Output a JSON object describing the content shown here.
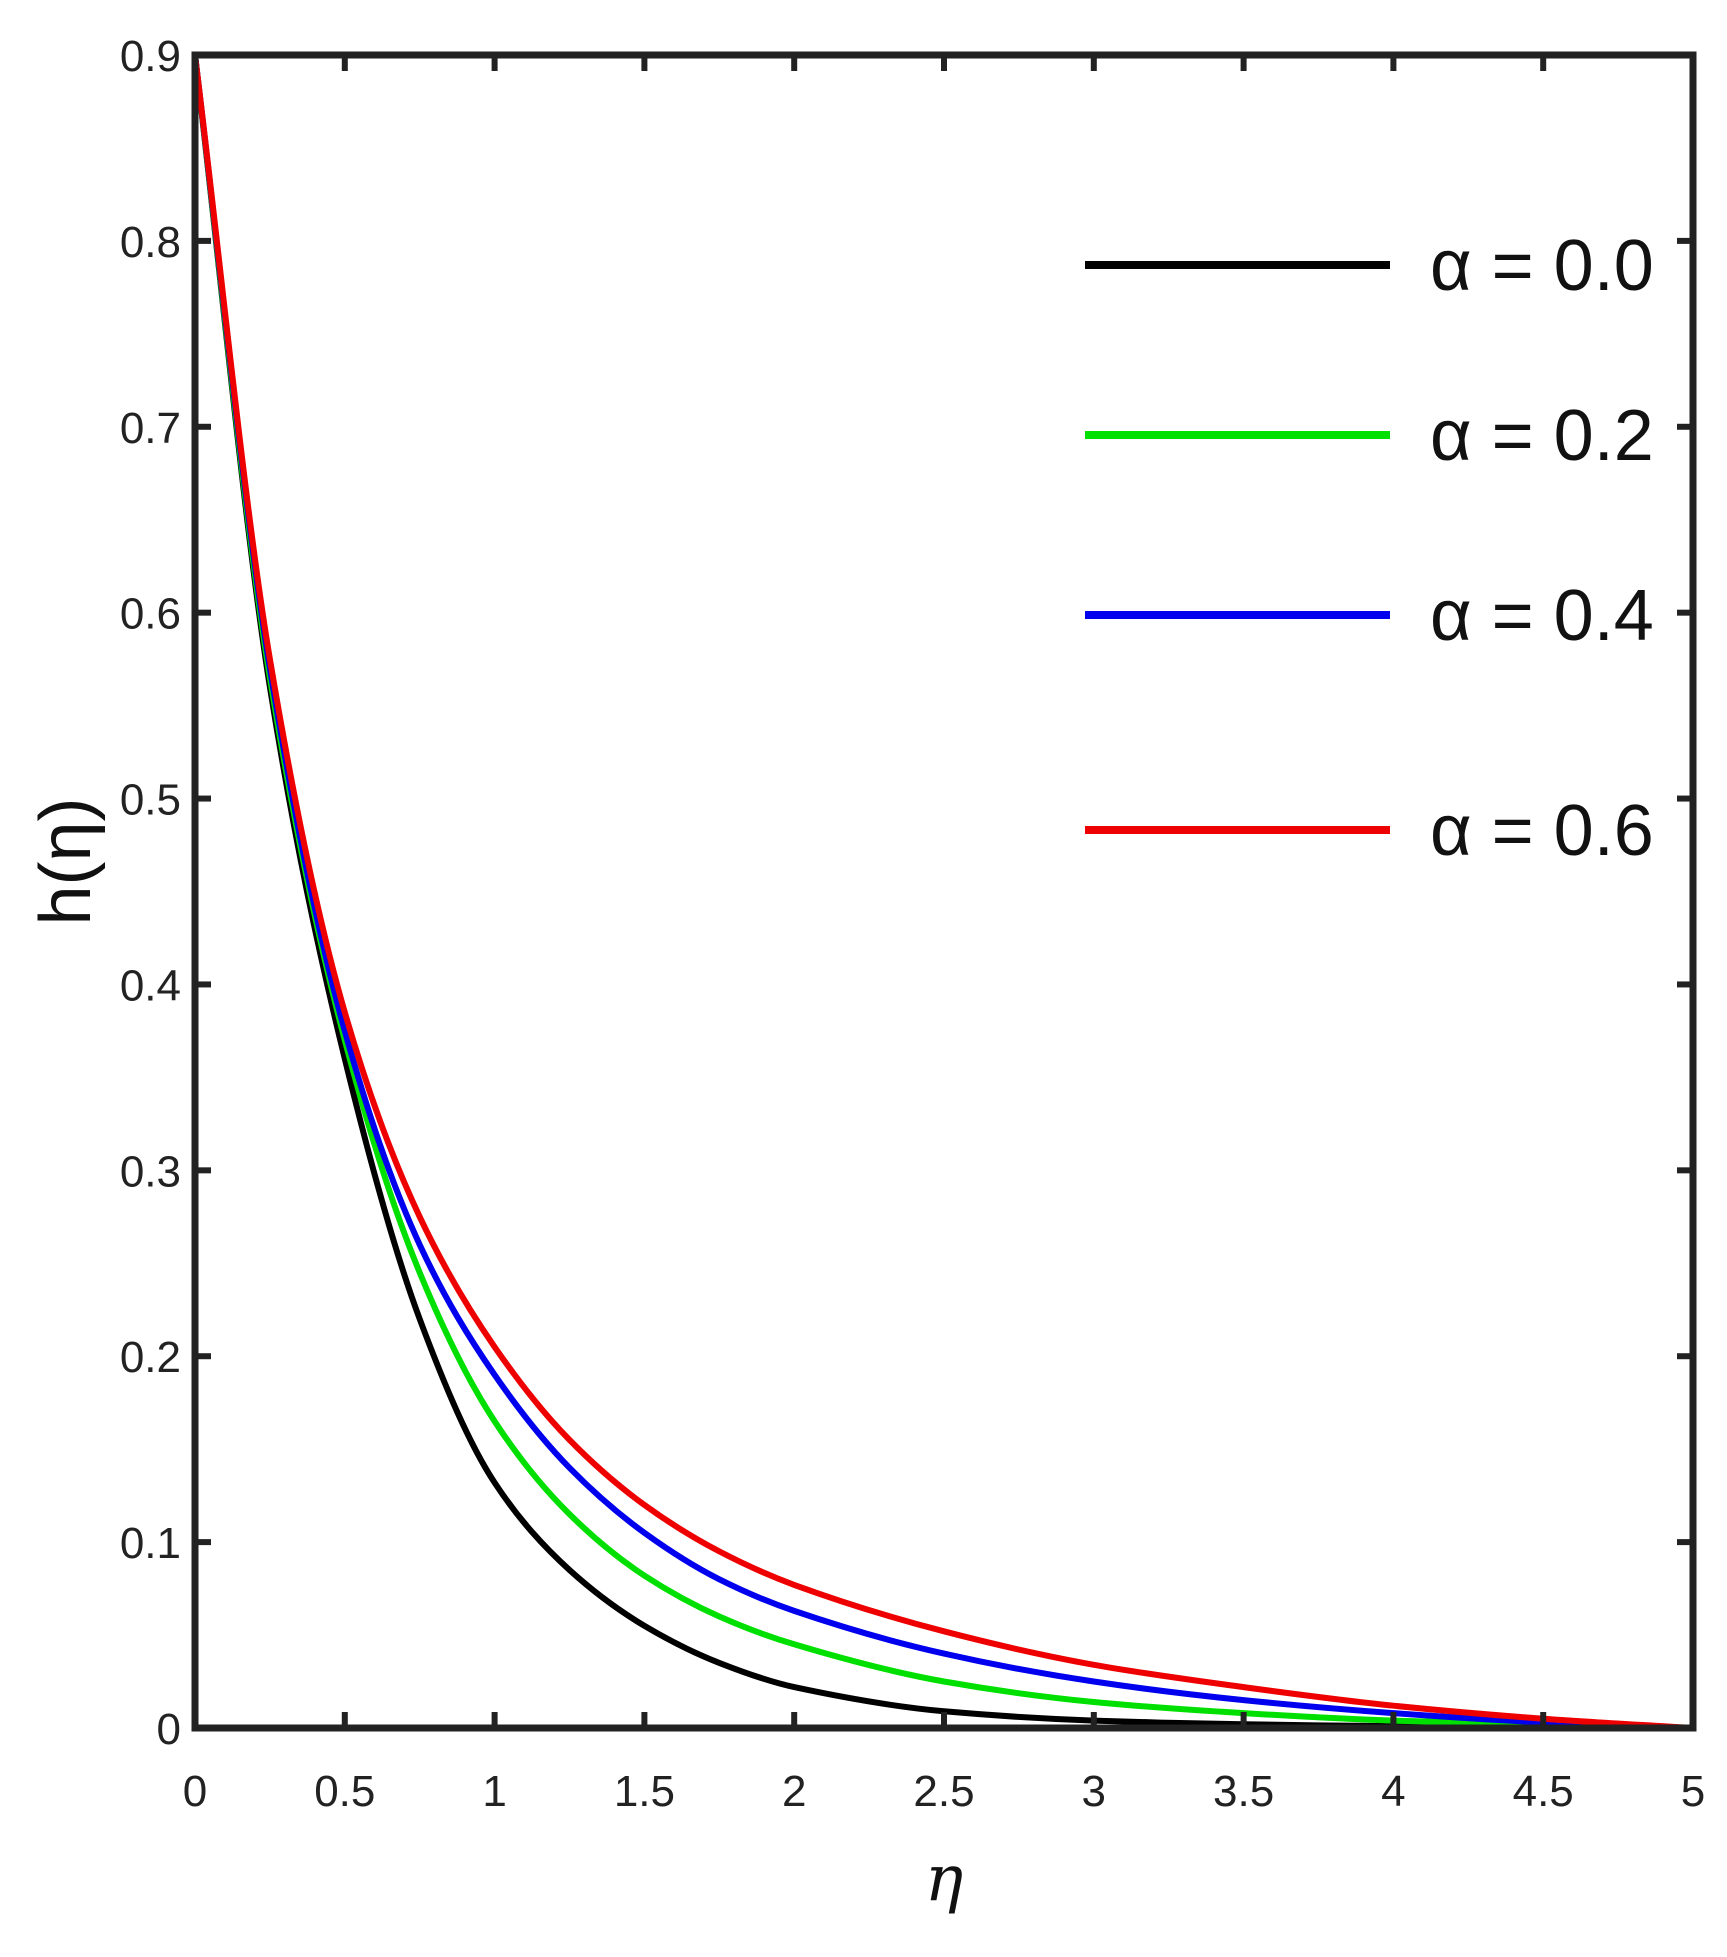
{
  "chart_data": {
    "type": "line",
    "title": "",
    "xlabel": "η",
    "ylabel": "h(η)",
    "xlim": [
      0,
      5
    ],
    "ylim": [
      0,
      0.9
    ],
    "xticks": [
      0,
      0.5,
      1,
      1.5,
      2,
      2.5,
      3,
      3.5,
      4,
      4.5,
      5
    ],
    "xtick_labels": [
      "0",
      "0.5",
      "1",
      "1.5",
      "2",
      "2.5",
      "3",
      "3.5",
      "4",
      "4.5",
      "5"
    ],
    "yticks": [
      0,
      0.1,
      0.2,
      0.3,
      0.4,
      0.5,
      0.6,
      0.7,
      0.8,
      0.9
    ],
    "ytick_labels": [
      "0",
      "0.1",
      "0.2",
      "0.3",
      "0.4",
      "0.5",
      "0.6",
      "0.7",
      "0.8",
      "0.9"
    ],
    "grid": false,
    "legend_position": "top-right",
    "x": [
      0,
      0.25,
      0.5,
      0.75,
      1,
      1.25,
      1.5,
      1.75,
      2,
      2.5,
      3,
      3.5,
      4,
      4.5,
      5
    ],
    "series": [
      {
        "name": "α = 0.0",
        "color": "#000000",
        "values": [
          0.9,
          0.56,
          0.36,
          0.22,
          0.132,
          0.085,
          0.055,
          0.035,
          0.022,
          0.009,
          0.004,
          0.002,
          0.001,
          0.0005,
          0
        ]
      },
      {
        "name": "α = 0.2",
        "color": "#00e000",
        "values": [
          0.9,
          0.565,
          0.37,
          0.245,
          0.165,
          0.115,
          0.082,
          0.06,
          0.045,
          0.025,
          0.014,
          0.008,
          0.004,
          0.002,
          0
        ]
      },
      {
        "name": "α = 0.4",
        "color": "#0000ee",
        "values": [
          0.9,
          0.57,
          0.375,
          0.26,
          0.19,
          0.14,
          0.105,
          0.08,
          0.063,
          0.04,
          0.025,
          0.015,
          0.008,
          0.003,
          0
        ]
      },
      {
        "name": "α = 0.6",
        "color": "#ee0000",
        "values": [
          0.9,
          0.575,
          0.385,
          0.275,
          0.205,
          0.155,
          0.12,
          0.095,
          0.077,
          0.052,
          0.034,
          0.022,
          0.012,
          0.005,
          0
        ]
      }
    ]
  }
}
